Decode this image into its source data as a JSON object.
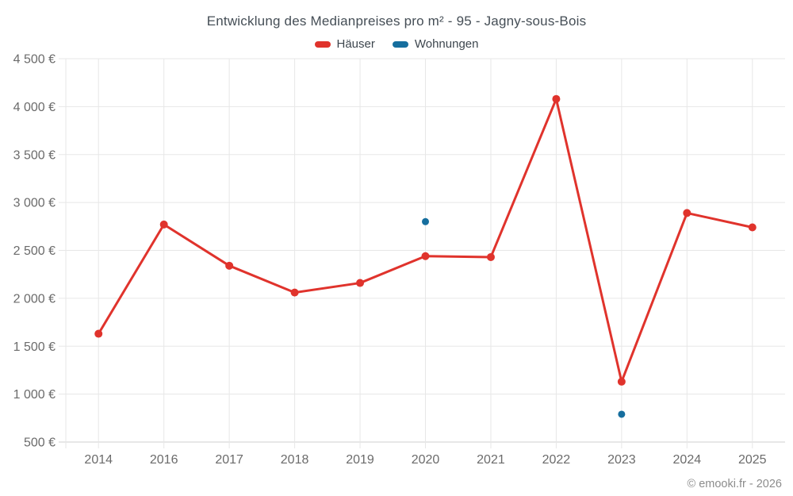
{
  "chart_data": {
    "type": "line",
    "title": "Entwicklung des Medianpreises pro m² - 95 - Jagny-sous-Bois",
    "categories": [
      "2014",
      "2016",
      "2017",
      "2018",
      "2019",
      "2020",
      "2021",
      "2022",
      "2023",
      "2024",
      "2025"
    ],
    "series": [
      {
        "name": "Häuser",
        "type": "line",
        "color": "#e0332c",
        "values": [
          1630,
          2770,
          2340,
          2060,
          2160,
          2440,
          2430,
          4080,
          1130,
          2890,
          2740
        ]
      },
      {
        "name": "Wohnungen",
        "type": "scatter",
        "color": "#166e9e",
        "values": [
          null,
          null,
          null,
          null,
          null,
          2800,
          null,
          null,
          790,
          null,
          null
        ]
      }
    ],
    "ylim": [
      500,
      4500
    ],
    "ytick_step": 500,
    "yticks": [
      {
        "value": 500,
        "label": "500 €"
      },
      {
        "value": 1000,
        "label": "1 000 €"
      },
      {
        "value": 1500,
        "label": "1 500 €"
      },
      {
        "value": 2000,
        "label": "2 000 €"
      },
      {
        "value": 2500,
        "label": "2 500 €"
      },
      {
        "value": 3000,
        "label": "3 000 €"
      },
      {
        "value": 3500,
        "label": "3 500 €"
      },
      {
        "value": 4000,
        "label": "4 000 €"
      },
      {
        "value": 4500,
        "label": "4 500 €"
      }
    ],
    "grid": true,
    "legend_position": "top"
  },
  "footer": {
    "copyright": "© emooki.fr - 2026"
  }
}
